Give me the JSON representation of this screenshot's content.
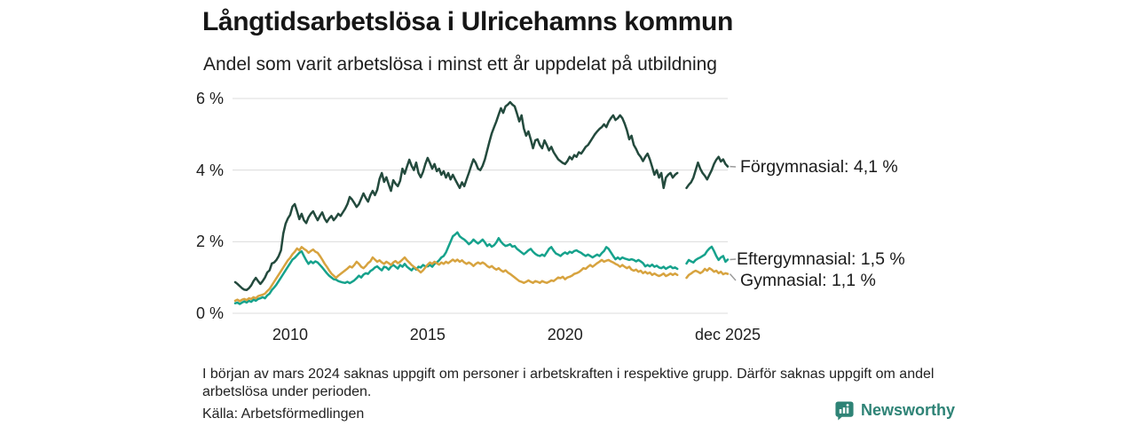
{
  "header": {
    "title": "Långtidsarbetslösa i Ulricehamns kommun",
    "subtitle": "Andel som varit arbetslösa i minst ett år uppdelat på utbildning"
  },
  "chart_data": {
    "type": "line",
    "x_start": "2008-01",
    "x_end": "2025-12",
    "x_interval": "monthly",
    "missing_period": [
      "2024-03",
      "2024-04",
      "2024-05"
    ],
    "ylim": [
      0,
      6
    ],
    "grid": "horizontal-only",
    "yticks": [
      {
        "value": 0,
        "label": "0 %"
      },
      {
        "value": 2,
        "label": "2 %"
      },
      {
        "value": 4,
        "label": "4 %"
      },
      {
        "value": 6,
        "label": "6 %"
      }
    ],
    "xticks": [
      {
        "pos": 2010.0,
        "label": "2010"
      },
      {
        "pos": 2015.0,
        "label": "2015"
      },
      {
        "pos": 2020.0,
        "label": "2020"
      },
      {
        "pos": 2025.917,
        "label": "dec 2025"
      }
    ],
    "series": [
      {
        "name": "Förgymnasial",
        "color": "#234a3d",
        "end_value": 4.1,
        "end_label": "Förgymnasial: 4,1 %",
        "values": [
          0.87,
          0.82,
          0.76,
          0.7,
          0.66,
          0.65,
          0.7,
          0.78,
          0.9,
          0.99,
          0.9,
          0.82,
          0.9,
          1.0,
          1.14,
          1.2,
          1.39,
          1.42,
          1.49,
          1.6,
          1.76,
          2.23,
          2.5,
          2.65,
          2.75,
          2.98,
          3.05,
          2.85,
          2.63,
          2.78,
          2.6,
          2.52,
          2.68,
          2.78,
          2.85,
          2.72,
          2.6,
          2.72,
          2.82,
          2.65,
          2.55,
          2.65,
          2.72,
          2.6,
          2.68,
          2.78,
          2.72,
          2.82,
          2.92,
          3.05,
          3.25,
          3.18,
          3.08,
          2.97,
          3.05,
          3.2,
          3.35,
          3.22,
          3.12,
          3.3,
          3.42,
          3.3,
          3.45,
          3.75,
          3.92,
          3.67,
          3.8,
          3.6,
          3.42,
          3.72,
          3.62,
          3.55,
          3.7,
          4.04,
          3.9,
          4.1,
          4.29,
          4.12,
          4.0,
          4.21,
          3.92,
          3.8,
          3.95,
          4.17,
          4.34,
          4.2,
          4.04,
          4.17,
          3.97,
          4.04,
          3.87,
          3.97,
          3.79,
          3.92,
          3.74,
          3.87,
          3.74,
          3.62,
          3.5,
          3.66,
          3.55,
          3.74,
          3.92,
          4.12,
          4.3,
          4.2,
          4.04,
          4.0,
          4.12,
          4.3,
          4.55,
          4.8,
          5.03,
          5.2,
          5.36,
          5.55,
          5.73,
          5.6,
          5.78,
          5.83,
          5.9,
          5.83,
          5.78,
          5.58,
          5.36,
          5.53,
          5.16,
          4.96,
          5.08,
          4.86,
          4.61,
          4.83,
          4.86,
          4.7,
          4.61,
          4.83,
          4.7,
          4.55,
          4.65,
          4.5,
          4.4,
          4.3,
          4.25,
          4.2,
          4.17,
          4.25,
          4.37,
          4.3,
          4.42,
          4.37,
          4.5,
          4.46,
          4.55,
          4.65,
          4.7,
          4.8,
          4.9,
          5.0,
          5.08,
          5.15,
          5.2,
          5.28,
          5.2,
          5.35,
          5.45,
          5.53,
          5.4,
          5.45,
          5.53,
          5.45,
          5.3,
          5.11,
          4.86,
          4.96,
          4.7,
          4.59,
          4.45,
          4.37,
          4.25,
          4.37,
          4.46,
          4.3,
          4.09,
          3.87,
          4.0,
          3.79,
          3.92,
          3.5,
          3.79,
          3.87,
          3.92,
          3.79,
          3.87,
          3.92,
          null,
          null,
          null,
          3.5,
          3.59,
          3.66,
          3.79,
          4.0,
          4.21,
          4.04,
          3.92,
          3.84,
          3.74,
          3.87,
          4.0,
          4.17,
          4.29,
          4.37,
          4.24,
          4.3,
          4.17,
          4.1
        ]
      },
      {
        "name": "Eftergymnasial",
        "color": "#16a28c",
        "end_value": 1.5,
        "end_label": "Eftergymnasial: 1,5 %",
        "values": [
          0.28,
          0.3,
          0.26,
          0.3,
          0.33,
          0.3,
          0.35,
          0.32,
          0.38,
          0.35,
          0.4,
          0.42,
          0.45,
          0.42,
          0.5,
          0.55,
          0.65,
          0.72,
          0.8,
          0.9,
          1.0,
          1.1,
          1.2,
          1.3,
          1.4,
          1.5,
          1.55,
          1.62,
          1.69,
          1.73,
          1.6,
          1.48,
          1.38,
          1.45,
          1.4,
          1.45,
          1.42,
          1.35,
          1.28,
          1.2,
          1.12,
          1.05,
          1.0,
          0.95,
          0.94,
          0.9,
          0.88,
          0.86,
          0.85,
          0.88,
          0.84,
          0.88,
          0.92,
          0.98,
          1.05,
          1.0,
          1.08,
          1.12,
          1.1,
          1.18,
          1.22,
          1.28,
          1.31,
          1.25,
          1.2,
          1.3,
          1.28,
          1.22,
          1.3,
          1.35,
          1.3,
          1.25,
          1.35,
          1.3,
          1.38,
          1.3,
          1.25,
          1.2,
          1.28,
          1.22,
          1.3,
          1.28,
          1.35,
          1.31,
          1.31,
          1.35,
          1.3,
          1.38,
          1.42,
          1.48,
          1.56,
          1.6,
          1.7,
          1.85,
          2.0,
          2.15,
          2.2,
          2.26,
          2.15,
          2.1,
          2.06,
          2.0,
          1.93,
          1.98,
          2.06,
          2.0,
          1.95,
          2.0,
          2.06,
          1.98,
          1.88,
          1.93,
          1.86,
          1.9,
          1.98,
          2.1,
          2.0,
          1.93,
          1.88,
          1.9,
          1.93,
          1.86,
          1.88,
          1.8,
          1.75,
          1.7,
          1.65,
          1.7,
          1.76,
          1.8,
          1.72,
          1.66,
          1.62,
          1.6,
          1.64,
          1.6,
          1.7,
          1.8,
          1.85,
          1.75,
          1.67,
          1.64,
          1.6,
          1.66,
          1.7,
          1.66,
          1.72,
          1.69,
          1.74,
          1.76,
          1.72,
          1.69,
          1.64,
          1.6,
          1.64,
          1.6,
          1.56,
          1.6,
          1.64,
          1.6,
          1.68,
          1.74,
          1.85,
          1.8,
          1.7,
          1.6,
          1.51,
          1.56,
          1.51,
          1.56,
          1.53,
          1.51,
          1.49,
          1.51,
          1.49,
          1.45,
          1.49,
          1.45,
          1.4,
          1.31,
          1.35,
          1.31,
          1.36,
          1.3,
          1.33,
          1.28,
          1.26,
          1.3,
          1.24,
          1.28,
          1.31,
          1.26,
          1.28,
          1.24,
          null,
          null,
          null,
          1.39,
          1.49,
          1.45,
          1.42,
          1.49,
          1.53,
          1.56,
          1.6,
          1.64,
          1.74,
          1.81,
          1.86,
          1.74,
          1.6,
          1.49,
          1.56,
          1.6,
          1.44,
          1.5
        ]
      },
      {
        "name": "Gymnasial",
        "color": "#d7a33f",
        "end_value": 1.1,
        "end_label": "Gymnasial: 1,1 %",
        "values": [
          0.35,
          0.38,
          0.34,
          0.38,
          0.4,
          0.37,
          0.42,
          0.4,
          0.45,
          0.42,
          0.48,
          0.5,
          0.52,
          0.55,
          0.62,
          0.68,
          0.78,
          0.88,
          0.98,
          1.08,
          1.18,
          1.28,
          1.38,
          1.48,
          1.55,
          1.65,
          1.72,
          1.81,
          1.76,
          1.85,
          1.8,
          1.76,
          1.69,
          1.74,
          1.78,
          1.72,
          1.69,
          1.6,
          1.5,
          1.39,
          1.3,
          1.2,
          1.11,
          1.05,
          0.99,
          1.05,
          1.1,
          1.15,
          1.2,
          1.25,
          1.31,
          1.28,
          1.35,
          1.44,
          1.38,
          1.3,
          1.26,
          1.32,
          1.4,
          1.45,
          1.56,
          1.5,
          1.44,
          1.48,
          1.42,
          1.38,
          1.44,
          1.4,
          1.35,
          1.42,
          1.46,
          1.4,
          1.44,
          1.5,
          1.56,
          1.48,
          1.42,
          1.35,
          1.3,
          1.25,
          1.2,
          1.14,
          1.2,
          1.28,
          1.36,
          1.42,
          1.38,
          1.44,
          1.4,
          1.36,
          1.42,
          1.38,
          1.44,
          1.4,
          1.45,
          1.5,
          1.45,
          1.5,
          1.44,
          1.48,
          1.42,
          1.38,
          1.42,
          1.38,
          1.32,
          1.38,
          1.42,
          1.38,
          1.42,
          1.38,
          1.32,
          1.28,
          1.32,
          1.26,
          1.22,
          1.26,
          1.2,
          1.16,
          1.2,
          1.14,
          1.1,
          1.05,
          1.0,
          0.95,
          0.9,
          0.88,
          0.85,
          0.88,
          0.92,
          0.88,
          0.85,
          0.9,
          0.88,
          0.85,
          0.9,
          0.87,
          0.85,
          0.88,
          0.92,
          0.9,
          0.95,
          1.0,
          0.98,
          1.02,
          0.95,
          1.0,
          1.02,
          1.05,
          1.1,
          1.12,
          1.15,
          1.2,
          1.26,
          1.24,
          1.3,
          1.35,
          1.3,
          1.35,
          1.4,
          1.44,
          1.49,
          1.44,
          1.47,
          1.49,
          1.45,
          1.42,
          1.38,
          1.35,
          1.3,
          1.35,
          1.3,
          1.26,
          1.3,
          1.22,
          1.19,
          1.22,
          1.16,
          1.19,
          1.12,
          1.16,
          1.11,
          1.14,
          1.07,
          1.11,
          1.07,
          1.04,
          1.07,
          1.11,
          1.04,
          1.07,
          1.11,
          1.07,
          1.11,
          1.07,
          null,
          null,
          null,
          0.99,
          1.07,
          1.11,
          1.16,
          1.19,
          1.16,
          1.12,
          1.16,
          1.24,
          1.19,
          1.26,
          1.22,
          1.16,
          1.19,
          1.12,
          1.16,
          1.09,
          1.12,
          1.1
        ]
      }
    ],
    "colors": {
      "grid": "#dcdcdc",
      "leader_dash": "#9a9a9a",
      "brand_teal": "#2e8376"
    }
  },
  "footer": {
    "note": "I början av mars 2024 saknas uppgift om personer i arbetskraften i respektive grupp. Därför saknas uppgift om andel arbetslösa under perioden.",
    "source": "Källa: Arbetsförmedlingen",
    "brand": "Newsworthy"
  }
}
